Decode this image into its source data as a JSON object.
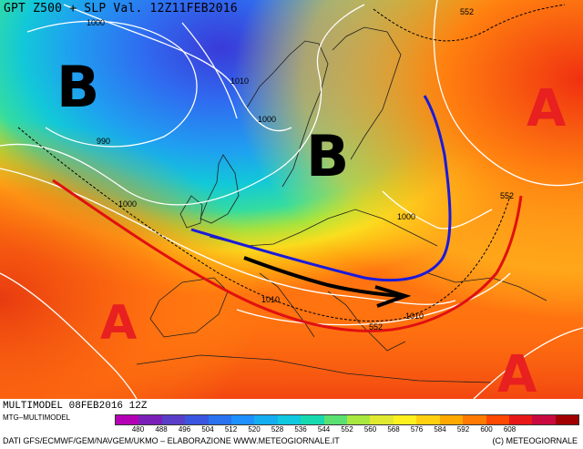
{
  "header": {
    "title": "GPT Z500 + SLP Val. 12Z11FEB2016"
  },
  "footer": {
    "model_line": "MULTIMODEL 08FEB2016 12Z",
    "product": "MTG–MULTIMODEL",
    "sources": "DATI GFS/ECMWF/GEM/NAVGEM/UKMO – ELABORAZIONE WWW.METEOGIORNALE.IT",
    "copyright": "(C) METEOGIORNALE",
    "scale_labels": [
      "480",
      "488",
      "496",
      "504",
      "512",
      "520",
      "528",
      "536",
      "544",
      "552",
      "560",
      "568",
      "576",
      "584",
      "592",
      "600",
      "608"
    ],
    "scale_colors": [
      "#b400b4",
      "#7a1fb8",
      "#5a3ec8",
      "#3a55e0",
      "#2a72f0",
      "#1e90ff",
      "#14aef0",
      "#10c8e0",
      "#18d8b0",
      "#5ae070",
      "#a8e840",
      "#e0e830",
      "#fff020",
      "#ffd010",
      "#ffa800",
      "#ff7a00",
      "#ff4800",
      "#e81818",
      "#c80a40",
      "#a00000"
    ]
  },
  "labels": {
    "high": "A",
    "low": "B",
    "isobars": [
      "1000",
      "1010",
      "1000",
      "990",
      "1000",
      "1000",
      "1010",
      "1010",
      "552",
      "552",
      "552"
    ]
  },
  "colors": {
    "isobar": "#ffffff",
    "trough_line": "#1a1adc",
    "ridge_line": "#e01010",
    "jet_arrow": "#000000",
    "pressure_letter_high": "#e82020",
    "pressure_letter_low": "#000000"
  }
}
